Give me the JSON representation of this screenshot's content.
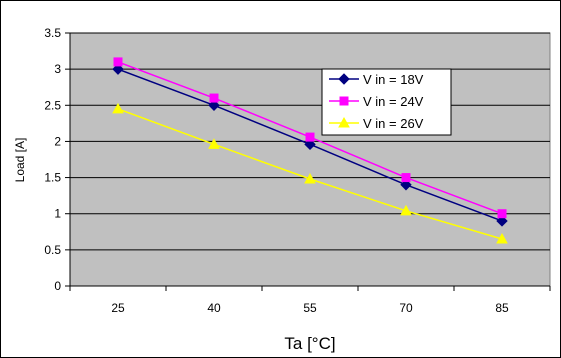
{
  "chart_data": {
    "type": "line",
    "categories": [
      "25",
      "40",
      "55",
      "70",
      "85"
    ],
    "series": [
      {
        "name": "V in = 18V",
        "color": "#000080",
        "marker": "diamond",
        "values": [
          3.0,
          2.5,
          1.96,
          1.4,
          0.9
        ]
      },
      {
        "name": "V in = 24V",
        "color": "#ff00ff",
        "marker": "square",
        "values": [
          3.1,
          2.6,
          2.06,
          1.5,
          1.0
        ]
      },
      {
        "name": "V in = 26V",
        "color": "#ffff00",
        "marker": "triangle",
        "values": [
          2.45,
          1.96,
          1.48,
          1.04,
          0.65
        ]
      }
    ],
    "xlabel": "Ta [°C]",
    "ylabel": "Load [A]",
    "yticks": [
      "0",
      "0.5",
      "1",
      "1.5",
      "2",
      "2.5",
      "3",
      "3.5"
    ],
    "ylim": [
      0,
      3.5
    ],
    "grid": true,
    "legend_position": "top-right",
    "plot_background": "#c0c0c0"
  }
}
